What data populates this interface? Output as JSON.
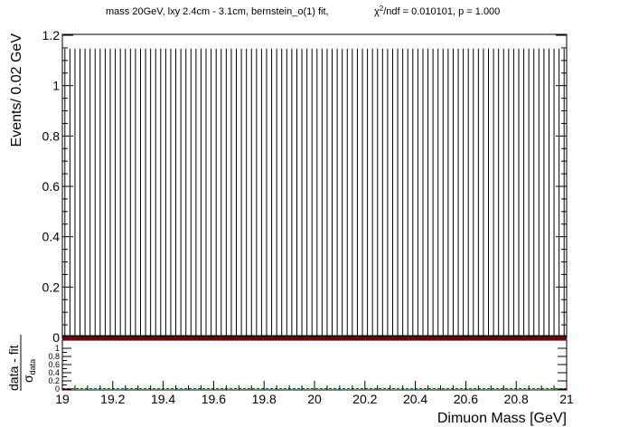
{
  "chart_data": [
    {
      "type": "bar",
      "panel": "main",
      "title": "mass 20GeV, lxy 2.4cm - 3.1cm, bernstein_o(1) fit,",
      "stats": {
        "chi_label": "χ",
        "chi_sup": "2",
        "chi_rest": "/ndf = 0.010101, p = 1.000"
      },
      "ylabel": "Events/ 0.02 GeV",
      "x_range": [
        19,
        21
      ],
      "ylim": [
        0,
        1.2
      ],
      "y_ticks": [
        "0",
        "0.2",
        "0.4",
        "0.6",
        "0.8",
        "1",
        "1.2"
      ],
      "bin_width": 0.02,
      "bins": 100,
      "data_points_value": 0,
      "error_bar_high": 1.147,
      "fit_value": 0,
      "colors": {
        "data": "#000000",
        "fit": "#e00000",
        "axis": "#000000"
      }
    },
    {
      "type": "scatter",
      "panel": "ratio",
      "ylabel_num": "data - fit",
      "ylabel_den": "σ",
      "ylabel_den_sub": "data",
      "xlabel": "Dimuon Mass [GeV]",
      "x_range": [
        19,
        21
      ],
      "x_ticks": [
        "19",
        "19.2",
        "19.4",
        "19.6",
        "19.8",
        "20",
        "20.2",
        "20.4",
        "20.6",
        "20.8",
        "21"
      ],
      "ylim": [
        0,
        1
      ],
      "y_ticks": [
        "0",
        "0.2",
        "0.4",
        "0.6",
        "0.8",
        "1"
      ],
      "values": 0,
      "colors": {
        "zero_line": "#e00000"
      }
    }
  ]
}
